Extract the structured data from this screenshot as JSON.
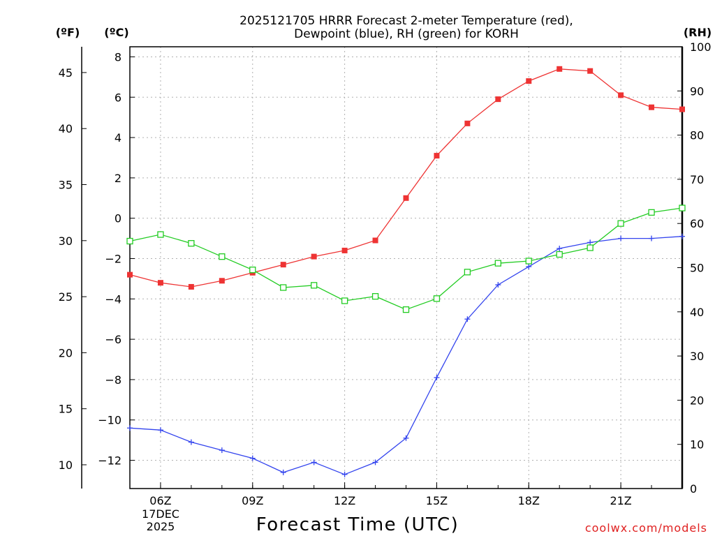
{
  "title_line1": "2025121705 HRRR Forecast 2-meter Temperature (red),",
  "title_line2": "Dewpoint (blue), RH (green) for KORH",
  "unit_f": "(ºF)",
  "unit_c": "(ºC)",
  "unit_rh": "(RH)",
  "xlabel": "Forecast Time (UTC)",
  "credit": "coolwx.com/models",
  "date_line1": "17DEC",
  "date_line2": "2025",
  "colors": {
    "temperature": "#ee3333",
    "dewpoint": "#3344ee",
    "rh": "#22cc22",
    "grid": "#b0b0b0",
    "credit": "#e02020"
  },
  "chart_data": {
    "type": "line",
    "x": [
      5,
      6,
      7,
      8,
      9,
      10,
      11,
      12,
      13,
      14,
      15,
      16,
      17,
      18,
      19,
      20,
      21,
      22,
      23
    ],
    "x_ticks": [
      {
        "value": 6,
        "label": "06Z"
      },
      {
        "value": 9,
        "label": "09Z"
      },
      {
        "value": 12,
        "label": "12Z"
      },
      {
        "value": 15,
        "label": "15Z"
      },
      {
        "value": 18,
        "label": "18Z"
      },
      {
        "value": 21,
        "label": "21Z"
      }
    ],
    "xlim": [
      5,
      23
    ],
    "ylim_c": [
      -13.4,
      8.5
    ],
    "ylim_rh": [
      0,
      100
    ],
    "ylim_f": [
      7.88,
      47.3
    ],
    "y_ticks_c": [
      8,
      6,
      4,
      2,
      0,
      -2,
      -4,
      -6,
      -8,
      -10,
      -12
    ],
    "y_ticks_f": [
      45,
      40,
      35,
      30,
      25,
      20,
      15,
      10
    ],
    "y_ticks_rh": [
      100,
      90,
      80,
      70,
      60,
      50,
      40,
      30,
      20,
      10,
      0
    ],
    "series": [
      {
        "name": "Temperature",
        "axis": "c",
        "marker": "filled-square",
        "values": [
          -2.8,
          -3.2,
          -3.4,
          -3.1,
          -2.7,
          -2.3,
          -1.9,
          -1.6,
          -1.1,
          1.0,
          3.1,
          4.7,
          5.9,
          6.8,
          7.4,
          7.3,
          6.1,
          5.5,
          5.4
        ]
      },
      {
        "name": "Dewpoint",
        "axis": "c",
        "marker": "plus",
        "values": [
          -10.4,
          -10.5,
          -11.1,
          -11.5,
          -11.9,
          -12.6,
          -12.1,
          -12.7,
          -12.1,
          -10.9,
          -7.9,
          -5.0,
          -3.3,
          -2.4,
          -1.5,
          -1.2,
          -1.0,
          -1.0,
          -0.9
        ]
      },
      {
        "name": "RH",
        "axis": "rh",
        "marker": "open-square",
        "values": [
          56,
          57.5,
          55.5,
          52.5,
          49.5,
          45.5,
          46,
          42.5,
          43.5,
          40.5,
          43,
          49,
          51,
          51.5,
          53,
          54.5,
          60,
          62.5,
          63.5
        ]
      }
    ]
  }
}
